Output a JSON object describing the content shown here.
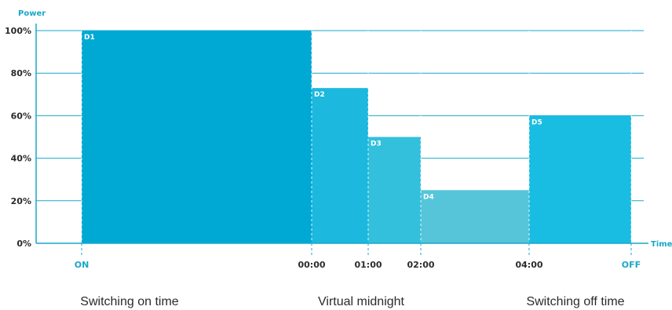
{
  "chart_data": {
    "type": "bar",
    "title": "",
    "ylabel": "Power",
    "xlabel": "Time",
    "ylim": [
      0,
      100
    ],
    "yticks": [
      "0%",
      "20%",
      "40%",
      "60%",
      "80%",
      "100%"
    ],
    "xticks": [
      "ON",
      "00:00",
      "01:00",
      "02:00",
      "04:00",
      "OFF"
    ],
    "bars": [
      {
        "label": "D1",
        "from": "ON",
        "to": "00:00",
        "value": 100,
        "color": "#00a9d4"
      },
      {
        "label": "D2",
        "from": "00:00",
        "to": "01:00",
        "value": 73,
        "color": "#1cb8de"
      },
      {
        "label": "D3",
        "from": "01:00",
        "to": "02:00",
        "value": 50,
        "color": "#33c0dc"
      },
      {
        "label": "D4",
        "from": "02:00",
        "to": "04:00",
        "value": 25,
        "color": "#56c5d9"
      },
      {
        "label": "D5",
        "from": "04:00",
        "to": "OFF",
        "value": 60,
        "color": "#19bde2"
      }
    ],
    "annotations": [
      "Switching on time",
      "Virtual midnight",
      "Switching off time"
    ],
    "grid": true,
    "colors": {
      "axis": "#1aa7c9",
      "grid": "#1aa7c9",
      "text": "#2b2b2b",
      "accent": "#1aa7c9"
    }
  }
}
